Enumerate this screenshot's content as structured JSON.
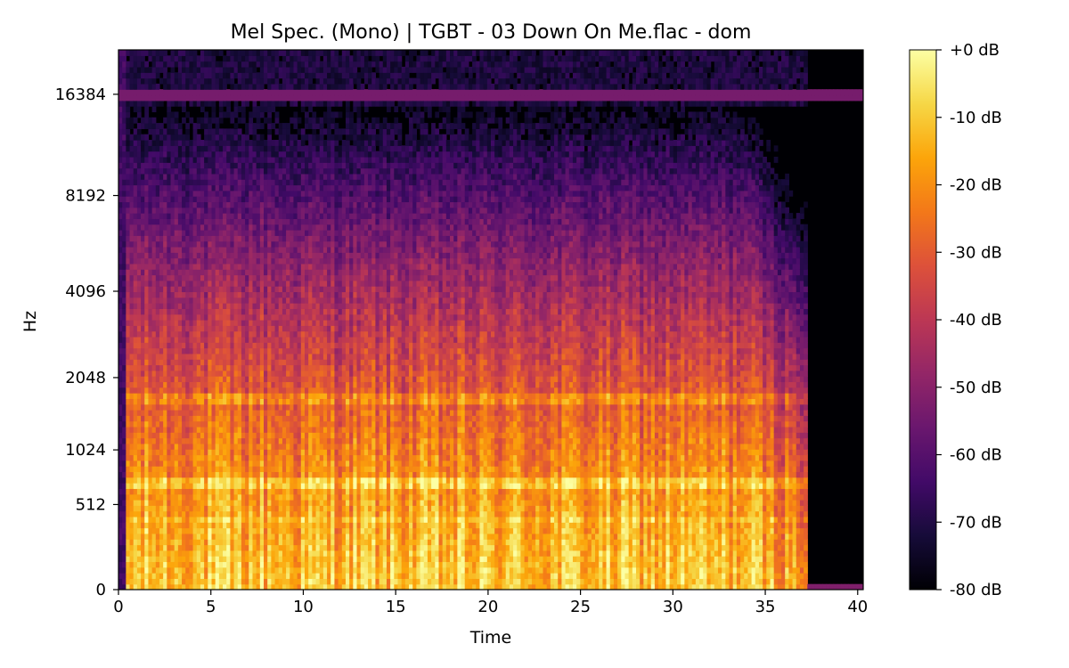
{
  "chart_data": {
    "type": "heatmap",
    "title": "Mel Spec. (Mono) | TGBT - 03 Down On Me.flac - dom",
    "xlabel": "Time",
    "ylabel": "Hz",
    "xlim": [
      0,
      40.3
    ],
    "x_ticks": [
      0,
      5,
      10,
      15,
      20,
      25,
      30,
      35,
      40
    ],
    "x_tick_labels": [
      "0",
      "5",
      "10",
      "15",
      "20",
      "25",
      "30",
      "35",
      "40"
    ],
    "y_scale": "mel",
    "y_ticks": [
      0,
      512,
      1024,
      2048,
      4096,
      8192,
      16384
    ],
    "y_tick_labels": [
      "0",
      "512",
      "1024",
      "2048",
      "4096",
      "8192",
      "16384"
    ],
    "colormap": "inferno",
    "colorbar": {
      "range_db": [
        -80,
        0
      ],
      "ticks": [
        0,
        -10,
        -20,
        -30,
        -40,
        -50,
        -60,
        -70,
        -80
      ],
      "tick_labels": [
        "+0 dB",
        "-10 dB",
        "-20 dB",
        "-30 dB",
        "-40 dB",
        "-50 dB",
        "-60 dB",
        "-70 dB",
        "-80 dB"
      ]
    },
    "audio_end_seconds": 37.2,
    "intensity_notes": "Loud energy (-20 to -5 dB) below ~1000 Hz for 0-37 s, strong bands near 700 Hz and 1700 Hz, mid energy 1-4 kHz, faint content 4-12 kHz, thin constant band near 16384 Hz, silence after ~37 s"
  }
}
